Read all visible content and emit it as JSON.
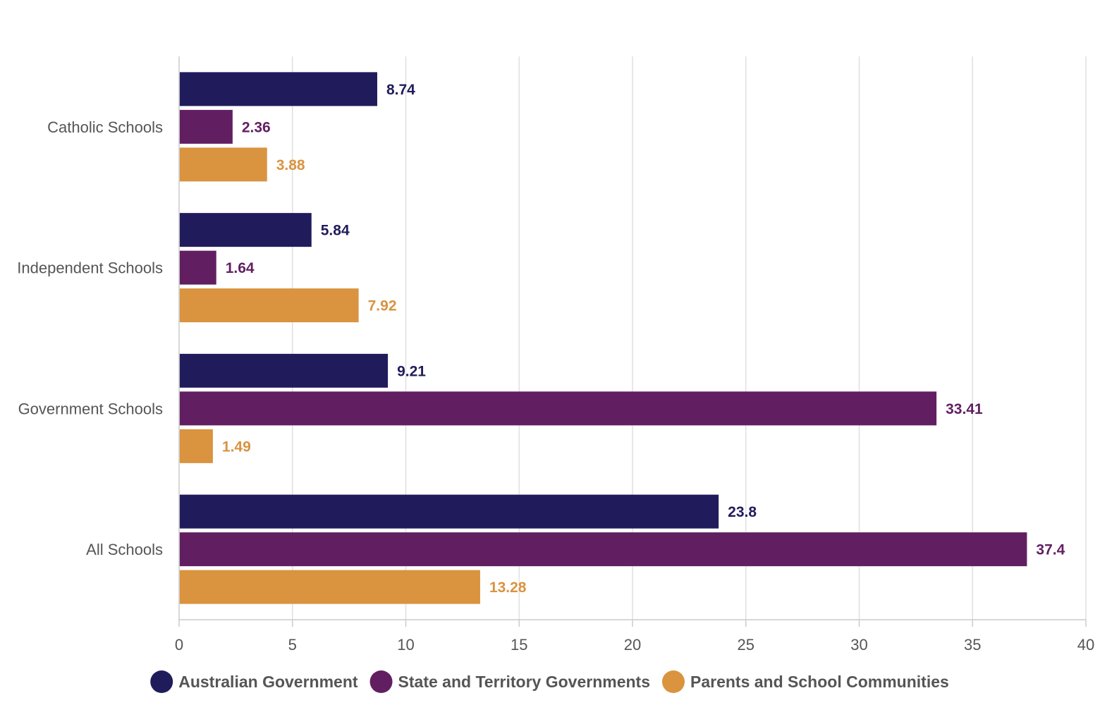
{
  "chart_data": {
    "type": "bar",
    "orientation": "horizontal",
    "title": "",
    "xlabel": "",
    "ylabel": "",
    "xlim": [
      0,
      40
    ],
    "x_ticks": [
      "0",
      "5",
      "10",
      "15",
      "20",
      "25",
      "30",
      "35",
      "40"
    ],
    "grid": true,
    "legend_position": "bottom",
    "categories": [
      "Catholic Schools",
      "Independent Schools",
      "Government Schools",
      "All Schools"
    ],
    "series": [
      {
        "name": "Australian Government",
        "color": "#201c5c",
        "values": [
          8.74,
          5.84,
          9.21,
          23.8
        ],
        "labels": [
          "8.74",
          "5.84",
          "9.21",
          "23.8"
        ]
      },
      {
        "name": "State and Territory Governments",
        "color": "#611f62",
        "values": [
          2.36,
          1.64,
          33.41,
          37.4
        ],
        "labels": [
          "2.36",
          "1.64",
          "33.41",
          "37.4"
        ]
      },
      {
        "name": "Parents and School Communities",
        "color": "#da933f",
        "values": [
          3.88,
          7.92,
          1.49,
          13.28
        ],
        "labels": [
          "3.88",
          "7.92",
          "1.49",
          "13.28"
        ]
      }
    ]
  }
}
